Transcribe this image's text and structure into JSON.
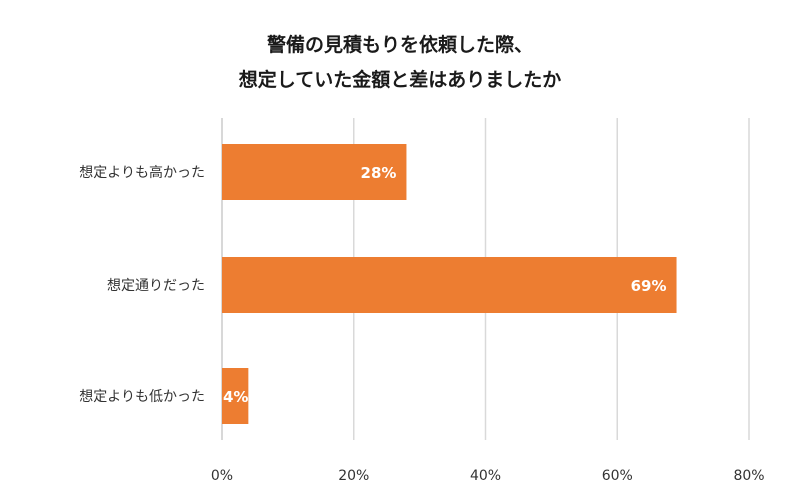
{
  "chart_data": {
    "type": "bar",
    "orientation": "horizontal",
    "title_lines": [
      "警備の見積もりを依頼した際、",
      "想定していた金額と差はありましたか"
    ],
    "categories": [
      "想定よりも高かった",
      "想定通りだった",
      "想定よりも低かった"
    ],
    "values": [
      28,
      69,
      4
    ],
    "data_labels": [
      "28%",
      "69%",
      "4%"
    ],
    "xlim": [
      0,
      80
    ],
    "x_ticks": [
      0,
      20,
      40,
      60,
      80
    ],
    "x_tick_labels": [
      "0%",
      "20%",
      "40%",
      "60%",
      "80%"
    ],
    "xlabel": "",
    "ylabel": "",
    "grid": true,
    "legend": "none",
    "bar_color": "#ED7D31"
  }
}
